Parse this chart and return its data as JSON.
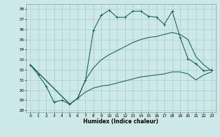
{
  "title": "",
  "xlabel": "Humidex (Indice chaleur)",
  "ylabel": "",
  "background_color": "#cce8e8",
  "grid_color": "#aacccc",
  "line_color": "#1a6655",
  "xlim": [
    -0.5,
    23.5
  ],
  "ylim": [
    27.8,
    38.5
  ],
  "yticks": [
    28,
    29,
    30,
    31,
    32,
    33,
    34,
    35,
    36,
    37,
    38
  ],
  "xticks": [
    0,
    1,
    2,
    3,
    4,
    5,
    6,
    7,
    8,
    9,
    10,
    11,
    12,
    13,
    14,
    15,
    16,
    17,
    18,
    19,
    20,
    21,
    22,
    23
  ],
  "line1_x": [
    0,
    1,
    2,
    3,
    4,
    5,
    6,
    7,
    8,
    9,
    10,
    11,
    12,
    13,
    14,
    15,
    16,
    17,
    18,
    19,
    20,
    21,
    22,
    23
  ],
  "line1_y": [
    32.5,
    31.5,
    30.4,
    28.8,
    29.0,
    28.6,
    29.2,
    31.0,
    35.9,
    37.4,
    37.9,
    37.2,
    37.2,
    37.8,
    37.8,
    37.3,
    37.2,
    36.5,
    37.8,
    35.2,
    33.1,
    32.6,
    31.9,
    32.0
  ],
  "line2_x": [
    0,
    5,
    6,
    7,
    8,
    9,
    10,
    11,
    12,
    13,
    14,
    15,
    16,
    17,
    18,
    19,
    20,
    21,
    22,
    23
  ],
  "line2_y": [
    32.5,
    28.6,
    29.2,
    31.0,
    32.2,
    33.0,
    33.5,
    33.9,
    34.3,
    34.7,
    35.0,
    35.2,
    35.3,
    35.5,
    35.7,
    35.5,
    35.0,
    33.3,
    32.5,
    31.9
  ],
  "line3_x": [
    0,
    5,
    6,
    7,
    8,
    9,
    10,
    11,
    12,
    13,
    14,
    15,
    16,
    17,
    18,
    19,
    20,
    21,
    22,
    23
  ],
  "line3_y": [
    32.5,
    28.6,
    29.2,
    29.8,
    30.2,
    30.4,
    30.5,
    30.7,
    30.9,
    31.1,
    31.3,
    31.4,
    31.5,
    31.6,
    31.8,
    31.8,
    31.6,
    31.0,
    31.5,
    31.8
  ]
}
